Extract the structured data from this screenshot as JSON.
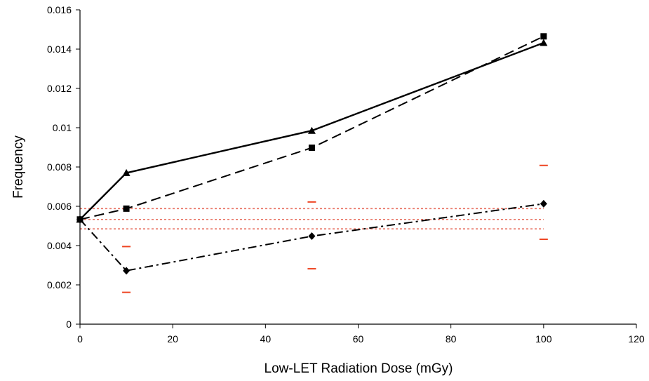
{
  "chart_data": {
    "type": "line",
    "title": "",
    "xlabel": "Low-LET Radiation Dose (mGy)",
    "ylabel": "Frequency",
    "xlim": [
      0,
      120
    ],
    "ylim": [
      0,
      0.016
    ],
    "x_ticks": [
      "0",
      "20",
      "40",
      "60",
      "80",
      "100",
      "120"
    ],
    "y_ticks": [
      "0",
      "0.002",
      "0.004",
      "0.006",
      "0.008",
      "0.01",
      "0.012",
      "0.014",
      "0.016"
    ],
    "grid": false,
    "legend": "none",
    "series": [
      {
        "marker": "triangle-up",
        "line_style": "solid",
        "color": "#000000",
        "points": [
          [
            0,
            0.00533
          ],
          [
            10,
            0.0077
          ],
          [
            50,
            0.00985
          ],
          [
            100,
            0.01432
          ]
        ]
      },
      {
        "marker": "square",
        "line_style": "dashed",
        "color": "#000000",
        "points": [
          [
            0,
            0.00533
          ],
          [
            10,
            0.00588
          ],
          [
            50,
            0.00898
          ],
          [
            100,
            0.01465
          ]
        ]
      },
      {
        "marker": "diamond",
        "line_style": "dash-dot",
        "color": "#000000",
        "points": [
          [
            0,
            0.00533
          ],
          [
            10,
            0.00272
          ],
          [
            50,
            0.00448
          ],
          [
            100,
            0.00613
          ]
        ]
      }
    ],
    "reference_lines": [
      {
        "y": 0.00588,
        "color": "#e87060",
        "style": "dotted"
      },
      {
        "y": 0.00533,
        "color": "#e87060",
        "style": "dotted"
      },
      {
        "y": 0.00485,
        "color": "#e87060",
        "style": "dotted"
      }
    ],
    "error_marks": [
      {
        "x": 10,
        "y": 0.00395
      },
      {
        "x": 10,
        "y": 0.00162
      },
      {
        "x": 50,
        "y": 0.00622
      },
      {
        "x": 50,
        "y": 0.00282
      },
      {
        "x": 100,
        "y": 0.00808
      },
      {
        "x": 100,
        "y": 0.00432
      }
    ],
    "error_color": "#ee4422"
  }
}
